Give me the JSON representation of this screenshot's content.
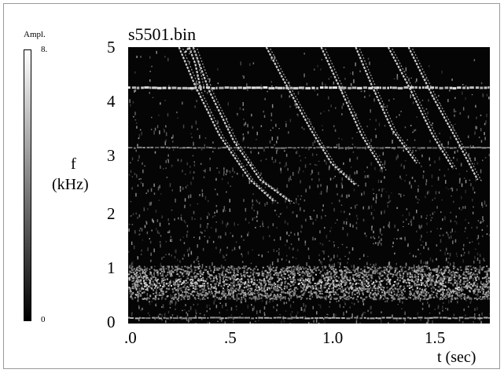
{
  "chart_data": {
    "type": "heatmap",
    "title": "s5501.bin",
    "xlabel": "t (sec)",
    "ylabel": [
      "f",
      "(kHz)"
    ],
    "xlim": [
      0,
      1.78
    ],
    "ylim": [
      0,
      5
    ],
    "x_ticks": [
      ".0",
      ".5",
      "1.0",
      "1.5"
    ],
    "x_tick_values": [
      0,
      0.5,
      1.0,
      1.5
    ],
    "y_ticks": [
      "0",
      "1",
      "2",
      "3",
      "4",
      "5"
    ],
    "y_tick_values": [
      0,
      1,
      2,
      3,
      4,
      5
    ],
    "colorbar": {
      "label": "Ampl.",
      "max_label": "8.",
      "min_label": "0",
      "range": [
        0,
        8
      ],
      "colors": [
        "#000000",
        "#ffffff"
      ]
    },
    "features": {
      "tonal_lines_khz": [
        4.27,
        3.18,
        0.1
      ],
      "noise_band_khz": [
        0.45,
        1.05
      ],
      "sweeps": [
        {
          "t": [
            0.25,
            0.33,
            0.45,
            0.6,
            0.72
          ],
          "f": [
            5.0,
            4.3,
            3.4,
            2.6,
            2.2
          ]
        },
        {
          "t": [
            0.32,
            0.4,
            0.52,
            0.65,
            0.8
          ],
          "f": [
            5.0,
            4.2,
            3.3,
            2.6,
            2.2
          ]
        },
        {
          "t": [
            0.28,
            0.3,
            0.33,
            0.36
          ],
          "f": [
            4.9,
            5.0,
            4.7,
            4.2
          ]
        },
        {
          "t": [
            0.68,
            0.78,
            0.9,
            1.0,
            1.12
          ],
          "f": [
            5.0,
            4.3,
            3.5,
            2.9,
            2.5
          ]
        },
        {
          "t": [
            0.95,
            1.05,
            1.15,
            1.25
          ],
          "f": [
            5.0,
            4.2,
            3.4,
            2.8
          ]
        },
        {
          "t": [
            1.12,
            1.2,
            1.3,
            1.42
          ],
          "f": [
            5.0,
            4.3,
            3.5,
            2.9
          ]
        },
        {
          "t": [
            1.28,
            1.38,
            1.5,
            1.6
          ],
          "f": [
            5.0,
            4.3,
            3.4,
            2.8
          ]
        },
        {
          "t": [
            1.38,
            1.5,
            1.62,
            1.72
          ],
          "f": [
            5.0,
            4.1,
            3.3,
            2.6
          ]
        }
      ]
    }
  }
}
